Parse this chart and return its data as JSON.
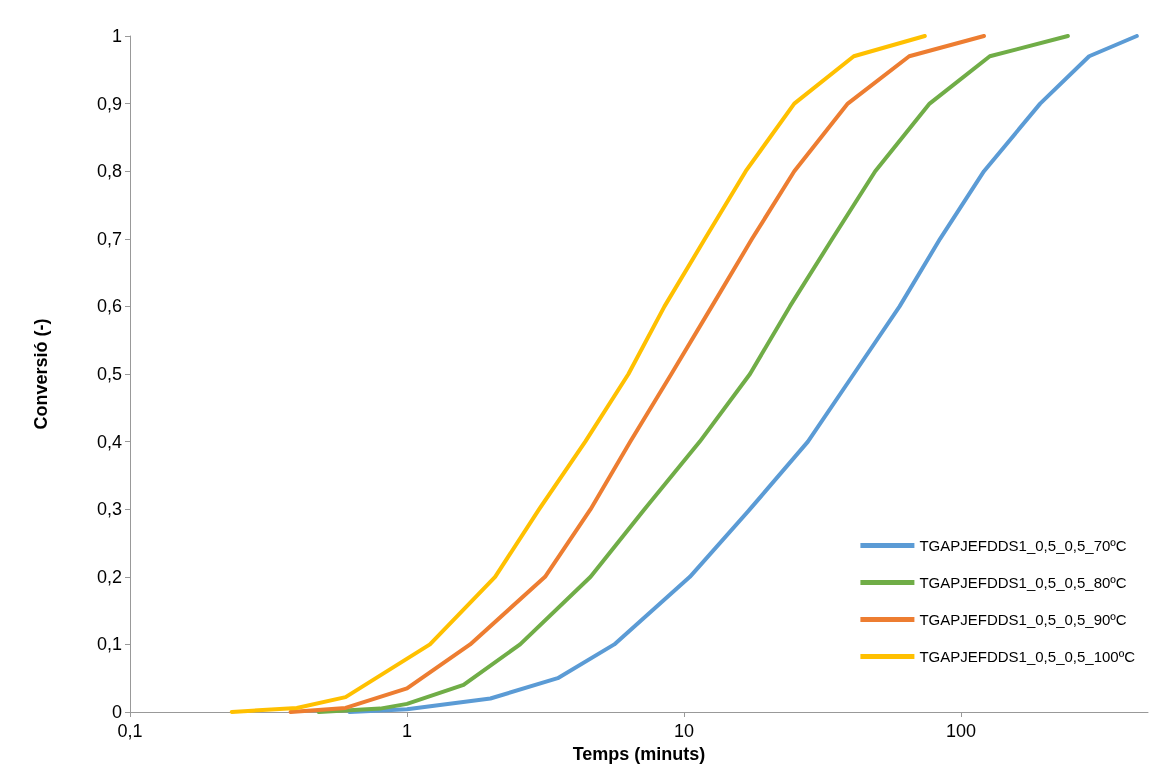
{
  "chart_data": {
    "type": "line",
    "xlabel": "Temps (minuts)",
    "ylabel": "Conversió (-)",
    "log": "x",
    "grid": false,
    "legend": "bottom right",
    "marker": "none",
    "line_style": "solid",
    "xlim": [
      0.1,
      473
    ],
    "xticks": [
      {
        "value": 0.1,
        "label": "0,1"
      },
      1,
      10,
      100
    ],
    "ylim": [
      0,
      1
    ],
    "yticks": [
      0,
      {
        "value": 0.1,
        "label": "0,1"
      },
      {
        "value": 0.2,
        "label": "0,2"
      },
      {
        "value": 0.3,
        "label": "0,3"
      },
      {
        "value": 0.4,
        "label": "0,4"
      },
      {
        "value": 0.5,
        "label": "0,5"
      },
      {
        "value": 0.6,
        "label": "0,6"
      },
      {
        "value": 0.7,
        "label": "0,7"
      },
      {
        "value": 0.8,
        "label": "0,8"
      },
      {
        "value": 0.9,
        "label": "0,9"
      },
      1
    ],
    "series": [
      {
        "name": "TGAPJEFDDS1_0,5_0,5_70ºC",
        "color": "#5b9bd5",
        "x": [
          0.62,
          1,
          2,
          3.5,
          5.6,
          10.5,
          17.3,
          28,
          41,
          60,
          84,
          121,
          193,
          290,
          431
        ],
        "values": [
          0,
          0.004,
          0.02,
          0.05,
          0.1,
          0.2,
          0.3,
          0.4,
          0.5,
          0.6,
          0.7,
          0.8,
          0.9,
          0.97,
          1
        ]
      },
      {
        "name": "TGAPJEFDDS1_0,5_0,5_80ºC",
        "color": "#70ad47",
        "x": [
          0.48,
          0.8,
          1,
          1.6,
          2.56,
          4.6,
          7.2,
          11.4,
          17.3,
          24.1,
          34.3,
          49,
          77,
          127,
          243
        ],
        "values": [
          0,
          0.005,
          0.012,
          0.04,
          0.1,
          0.2,
          0.3,
          0.4,
          0.5,
          0.6,
          0.7,
          0.8,
          0.9,
          0.97,
          1
        ]
      },
      {
        "name": "TGAPJEFDDS1_0,5_0,5_90ºC",
        "color": "#ed7d31",
        "x": [
          0.38,
          0.6,
          1,
          1.69,
          3.15,
          4.6,
          6.4,
          9,
          12.6,
          17.6,
          25,
          39,
          65,
          121
        ],
        "values": [
          0,
          0.006,
          0.035,
          0.1,
          0.2,
          0.3,
          0.4,
          0.5,
          0.6,
          0.7,
          0.8,
          0.9,
          0.97,
          1
        ]
      },
      {
        "name": "TGAPJEFDDS1_0,5_0,5_100ºC",
        "color": "#ffc000",
        "x": [
          0.233,
          0.4,
          0.6,
          1.21,
          2.08,
          3,
          4.4,
          6.3,
          8.5,
          11.9,
          16.7,
          25,
          41,
          74
        ],
        "values": [
          0,
          0.006,
          0.022,
          0.1,
          0.2,
          0.3,
          0.4,
          0.5,
          0.6,
          0.7,
          0.8,
          0.9,
          0.97,
          1
        ]
      }
    ]
  }
}
